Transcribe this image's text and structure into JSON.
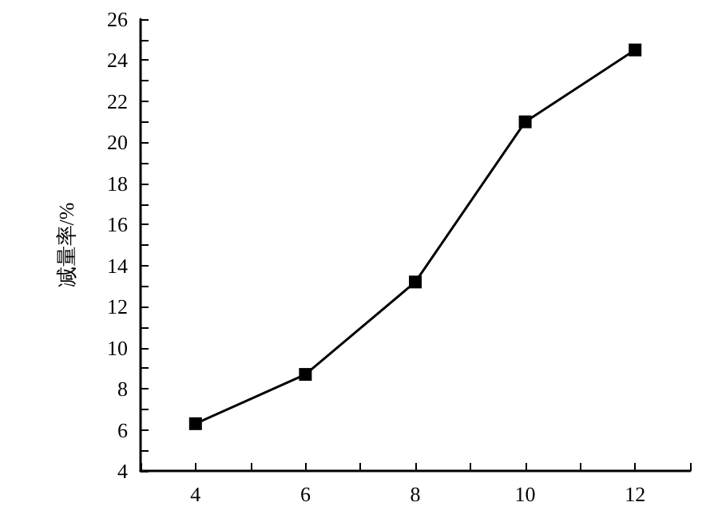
{
  "chart_data": {
    "type": "line",
    "ylabel": "减量率/%",
    "x": [
      4,
      6,
      8,
      10,
      12
    ],
    "series": [
      {
        "color": "#000000",
        "values": [
          6.3,
          8.7,
          13.2,
          21.0,
          24.5
        ]
      }
    ],
    "xlim": [
      3,
      13
    ],
    "xticks": [
      {
        "value": 3,
        "label": null
      },
      4,
      {
        "value": 5,
        "label": null
      },
      6,
      {
        "value": 7,
        "label": null
      },
      8,
      {
        "value": 9,
        "label": null
      },
      10,
      {
        "value": 11,
        "label": null
      },
      12,
      {
        "value": 13,
        "label": null
      }
    ],
    "ylim": [
      4,
      26
    ],
    "yticks": [
      4,
      {
        "value": 5,
        "label": null
      },
      6,
      {
        "value": 7,
        "label": null
      },
      8,
      {
        "value": 9,
        "label": null
      },
      10,
      {
        "value": 11,
        "label": null
      },
      12,
      {
        "value": 13,
        "label": null
      },
      14,
      {
        "value": 15,
        "label": null
      },
      16,
      {
        "value": 17,
        "label": null
      },
      18,
      {
        "value": 19,
        "label": null
      },
      20,
      {
        "value": 21,
        "label": null
      },
      22,
      {
        "value": 23,
        "label": null
      },
      24,
      {
        "value": 25,
        "label": null
      },
      26
    ],
    "marker": "square",
    "line_style": "solid"
  }
}
